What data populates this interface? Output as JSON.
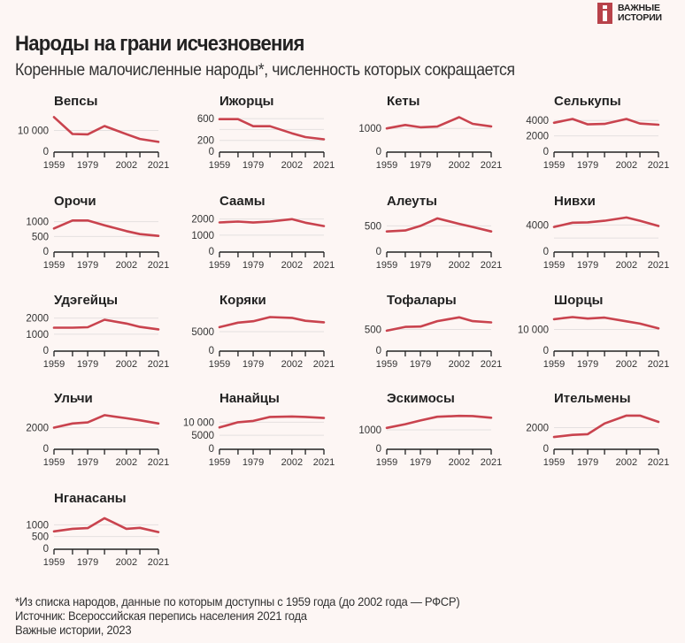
{
  "header": {
    "logo_line1": "ВАЖНЫЕ",
    "logo_line2": "ИСТОРИИ",
    "title": "Народы на грани исчезновения",
    "subtitle": "Коренные малочисленные народы*, численность которых сокращается"
  },
  "footer": {
    "note": "*Из списка народов, данные по которым доступны с 1959 года (до 2002 года — РФСР)",
    "source": "Источник: Всероссийская перепись населения 2021 года",
    "credit": "Важные истории, 2023"
  },
  "colors": {
    "line": "#c9434e",
    "grid": "#e4e0e0",
    "background": "#fdf6f4",
    "logo": "#b8424a"
  },
  "chart_data": [
    {
      "type": "line",
      "title": "Вепсы",
      "x": [
        1959,
        1970,
        1979,
        1989,
        2002,
        2010,
        2021
      ],
      "xticks": [
        "1959",
        "1979",
        "2002",
        "2021"
      ],
      "yticks": [
        0,
        10000
      ],
      "ytick_labels": [
        "0",
        "10 000"
      ],
      "ylim": [
        0,
        17000
      ],
      "values": [
        16400,
        8300,
        8100,
        12100,
        8200,
        5900,
        4500
      ]
    },
    {
      "type": "line",
      "title": "Ижорцы",
      "x": [
        1959,
        1970,
        1979,
        1989,
        2002,
        2010,
        2021
      ],
      "xticks": [
        "1959",
        "1979",
        "2002",
        "2021"
      ],
      "yticks": [
        0,
        200,
        400,
        600
      ],
      "ytick_labels": [
        "0",
        "200",
        "",
        "600"
      ],
      "ylim": [
        0,
        650
      ],
      "values": [
        590,
        590,
        460,
        460,
        330,
        260,
        220
      ]
    },
    {
      "type": "line",
      "title": "Кеты",
      "x": [
        1959,
        1970,
        1979,
        1989,
        2002,
        2010,
        2021
      ],
      "xticks": [
        "1959",
        "1979",
        "2002",
        "2021"
      ],
      "yticks": [
        0,
        1000
      ],
      "ytick_labels": [
        "0",
        "1000"
      ],
      "ylim": [
        0,
        1550
      ],
      "values": [
        1000,
        1150,
        1050,
        1080,
        1490,
        1200,
        1090
      ]
    },
    {
      "type": "line",
      "title": "Селькупы",
      "x": [
        1959,
        1970,
        1979,
        1989,
        2002,
        2010,
        2021
      ],
      "xticks": [
        "1959",
        "1979",
        "2002",
        "2021"
      ],
      "yticks": [
        0,
        2000,
        4000
      ],
      "ytick_labels": [
        "0",
        "2000",
        "4000"
      ],
      "ylim": [
        0,
        4600
      ],
      "values": [
        3700,
        4200,
        3500,
        3550,
        4200,
        3600,
        3450
      ]
    },
    {
      "type": "line",
      "title": "Орочи",
      "x": [
        1959,
        1970,
        1979,
        1989,
        2002,
        2010,
        2021
      ],
      "xticks": [
        "1959",
        "1979",
        "2002",
        "2021"
      ],
      "yticks": [
        0,
        500,
        1000
      ],
      "ytick_labels": [
        "0",
        "500",
        "1000"
      ],
      "ylim": [
        0,
        1200
      ],
      "values": [
        770,
        1040,
        1040,
        880,
        680,
        580,
        520
      ]
    },
    {
      "type": "line",
      "title": "Саамы",
      "x": [
        1959,
        1970,
        1979,
        1989,
        2002,
        2010,
        2021
      ],
      "xticks": [
        "1959",
        "1979",
        "2002",
        "2021"
      ],
      "yticks": [
        0,
        1000,
        2000
      ],
      "ytick_labels": [
        "0",
        "1000",
        "2000"
      ],
      "ylim": [
        0,
        2200
      ],
      "values": [
        1790,
        1840,
        1780,
        1840,
        1990,
        1770,
        1560
      ]
    },
    {
      "type": "line",
      "title": "Алеуты",
      "x": [
        1959,
        1970,
        1979,
        1989,
        2002,
        2010,
        2021
      ],
      "xticks": [
        "1959",
        "1979",
        "2002",
        "2021"
      ],
      "yticks": [
        0,
        500
      ],
      "ytick_labels": [
        "0",
        "500"
      ],
      "ylim": [
        0,
        700
      ],
      "values": [
        390,
        410,
        500,
        650,
        540,
        480,
        390
      ]
    },
    {
      "type": "line",
      "title": "Нивхи",
      "x": [
        1959,
        1970,
        1979,
        1989,
        2002,
        2010,
        2021
      ],
      "xticks": [
        "1959",
        "1979",
        "2002",
        "2021"
      ],
      "yticks": [
        0,
        2000,
        4000
      ],
      "ytick_labels": [
        "0",
        "",
        "4000"
      ],
      "ylim": [
        0,
        5400
      ],
      "values": [
        3700,
        4350,
        4400,
        4650,
        5150,
        4650,
        3850
      ]
    },
    {
      "type": "line",
      "title": "Удэгейцы",
      "x": [
        1959,
        1970,
        1979,
        1989,
        2002,
        2010,
        2021
      ],
      "xticks": [
        "1959",
        "1979",
        "2002",
        "2021"
      ],
      "yticks": [
        0,
        1000,
        2000
      ],
      "ytick_labels": [
        "0",
        "1000",
        "2000"
      ],
      "ylim": [
        0,
        2200
      ],
      "values": [
        1400,
        1400,
        1430,
        1900,
        1660,
        1450,
        1300
      ]
    },
    {
      "type": "line",
      "title": "Коряки",
      "x": [
        1959,
        1970,
        1979,
        1989,
        2002,
        2010,
        2021
      ],
      "xticks": [
        "1959",
        "1979",
        "2002",
        "2021"
      ],
      "yticks": [
        0,
        5000
      ],
      "ytick_labels": [
        "0",
        "5000"
      ],
      "ylim": [
        0,
        9500
      ],
      "values": [
        6200,
        7400,
        7800,
        8900,
        8700,
        7900,
        7500
      ]
    },
    {
      "type": "line",
      "title": "Тофалары",
      "x": [
        1959,
        1970,
        1979,
        1989,
        2002,
        2010,
        2021
      ],
      "xticks": [
        "1959",
        "1979",
        "2002",
        "2021"
      ],
      "yticks": [
        0,
        500
      ],
      "ytick_labels": [
        "0",
        "500"
      ],
      "ylim": [
        0,
        850
      ],
      "values": [
        470,
        560,
        570,
        700,
        790,
        700,
        670
      ]
    },
    {
      "type": "line",
      "title": "Шорцы",
      "x": [
        1959,
        1970,
        1979,
        1989,
        2002,
        2010,
        2021
      ],
      "xticks": [
        "1959",
        "1979",
        "2002",
        "2021"
      ],
      "yticks": [
        0,
        10000
      ],
      "ytick_labels": [
        "0",
        "10 000"
      ],
      "ylim": [
        0,
        17000
      ],
      "values": [
        14900,
        15950,
        15200,
        15700,
        13900,
        12800,
        10500
      ]
    },
    {
      "type": "line",
      "title": "Ульчи",
      "x": [
        1959,
        1970,
        1979,
        1989,
        2002,
        2010,
        2021
      ],
      "xticks": [
        "1959",
        "1979",
        "2002",
        "2021"
      ],
      "yticks": [
        0,
        2000
      ],
      "ytick_labels": [
        "0",
        "2000"
      ],
      "ylim": [
        0,
        3400
      ],
      "values": [
        2000,
        2400,
        2500,
        3200,
        2900,
        2700,
        2400
      ]
    },
    {
      "type": "line",
      "title": "Нанайцы",
      "x": [
        1959,
        1970,
        1979,
        1989,
        2002,
        2010,
        2021
      ],
      "xticks": [
        "1959",
        "1979",
        "2002",
        "2021"
      ],
      "yticks": [
        0,
        5000,
        10000
      ],
      "ytick_labels": [
        "0",
        "5000",
        "10 000"
      ],
      "ylim": [
        0,
        13500
      ],
      "values": [
        8000,
        10000,
        10500,
        12000,
        12200,
        12000,
        11600
      ]
    },
    {
      "type": "line",
      "title": "Эскимосы",
      "x": [
        1959,
        1970,
        1979,
        1989,
        2002,
        2010,
        2021
      ],
      "xticks": [
        "1959",
        "1979",
        "2002",
        "2021"
      ],
      "yticks": [
        0,
        1000
      ],
      "ytick_labels": [
        "0",
        "1000"
      ],
      "ylim": [
        0,
        1900
      ],
      "values": [
        1100,
        1300,
        1500,
        1700,
        1750,
        1740,
        1650
      ]
    },
    {
      "type": "line",
      "title": "Ительмены",
      "x": [
        1959,
        1970,
        1979,
        1989,
        2002,
        2010,
        2021
      ],
      "xticks": [
        "1959",
        "1979",
        "2002",
        "2021"
      ],
      "yticks": [
        0,
        2000
      ],
      "ytick_labels": [
        "0",
        "2000"
      ],
      "ylim": [
        0,
        3400
      ],
      "values": [
        1100,
        1300,
        1370,
        2400,
        3150,
        3150,
        2550
      ]
    },
    {
      "type": "line",
      "title": "Нганасаны",
      "x": [
        1959,
        1970,
        1979,
        1989,
        2002,
        2010,
        2021
      ],
      "xticks": [
        "1959",
        "1979",
        "2002",
        "2021"
      ],
      "yticks": [
        0,
        500,
        1000
      ],
      "ytick_labels": [
        "0",
        "500",
        "1000"
      ],
      "ylim": [
        0,
        1500
      ],
      "values": [
        720,
        830,
        860,
        1280,
        830,
        870,
        690
      ]
    }
  ]
}
